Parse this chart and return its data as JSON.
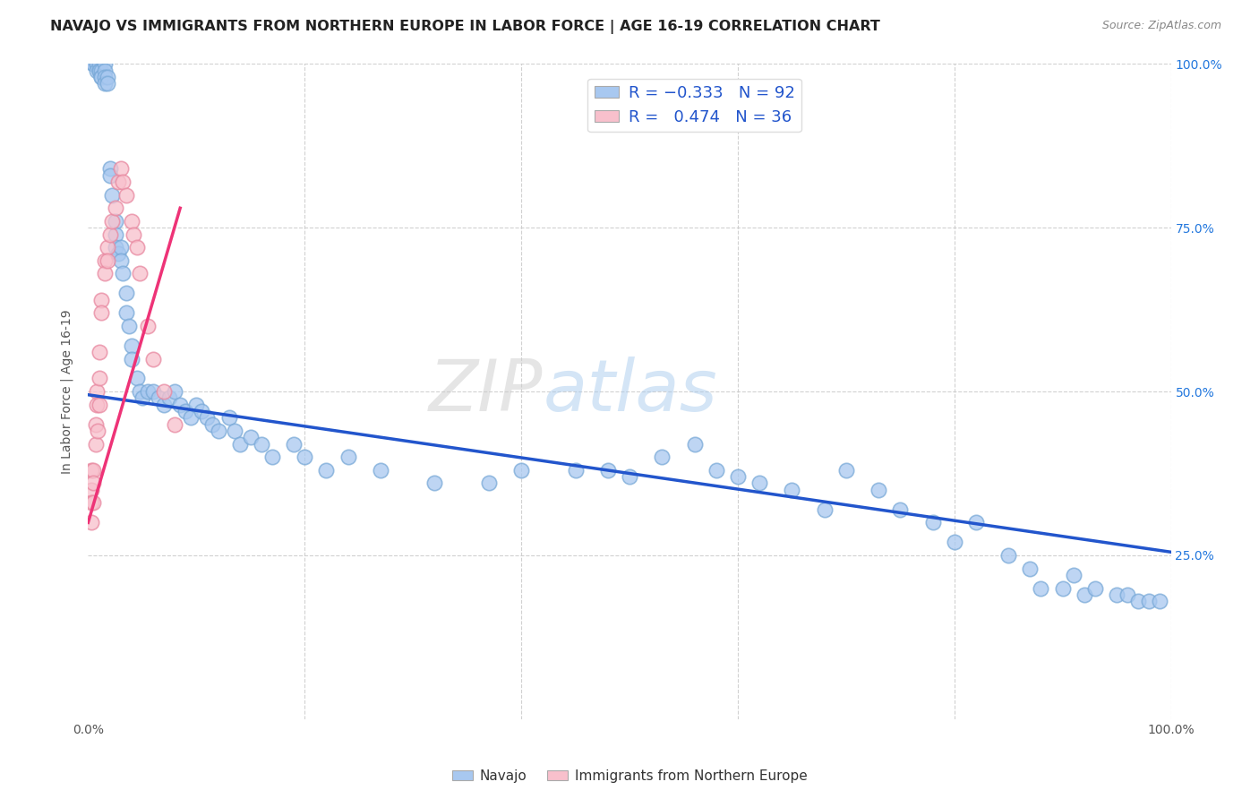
{
  "title": "NAVAJO VS IMMIGRANTS FROM NORTHERN EUROPE IN LABOR FORCE | AGE 16-19 CORRELATION CHART",
  "source": "Source: ZipAtlas.com",
  "ylabel": "In Labor Force | Age 16-19",
  "xlim": [
    0.0,
    1.0
  ],
  "ylim": [
    0.0,
    1.0
  ],
  "watermark_zip": "ZIP",
  "watermark_atlas": "atlas",
  "blue_color": "#A8C8F0",
  "blue_edge": "#7AAAD8",
  "pink_color": "#F8C0CC",
  "pink_edge": "#E888A0",
  "trend_blue": "#2255CC",
  "trend_pink": "#EE3377",
  "background": "#FFFFFF",
  "navajo_x": [
    0.005,
    0.005,
    0.005,
    0.008,
    0.008,
    0.008,
    0.01,
    0.01,
    0.01,
    0.012,
    0.012,
    0.012,
    0.015,
    0.015,
    0.015,
    0.015,
    0.018,
    0.018,
    0.02,
    0.02,
    0.022,
    0.025,
    0.025,
    0.025,
    0.028,
    0.03,
    0.03,
    0.032,
    0.035,
    0.035,
    0.038,
    0.04,
    0.04,
    0.045,
    0.048,
    0.05,
    0.055,
    0.06,
    0.065,
    0.07,
    0.075,
    0.08,
    0.085,
    0.09,
    0.095,
    0.1,
    0.105,
    0.11,
    0.115,
    0.12,
    0.13,
    0.135,
    0.14,
    0.15,
    0.16,
    0.17,
    0.19,
    0.2,
    0.22,
    0.24,
    0.27,
    0.32,
    0.37,
    0.4,
    0.45,
    0.48,
    0.5,
    0.53,
    0.56,
    0.58,
    0.6,
    0.62,
    0.65,
    0.68,
    0.7,
    0.73,
    0.75,
    0.78,
    0.8,
    0.82,
    0.85,
    0.87,
    0.88,
    0.9,
    0.91,
    0.92,
    0.93,
    0.95,
    0.96,
    0.97,
    0.98,
    0.99
  ],
  "navajo_y": [
    1.0,
    1.0,
    1.0,
    1.0,
    1.0,
    0.99,
    1.0,
    0.99,
    0.99,
    0.99,
    0.98,
    0.98,
    1.0,
    0.99,
    0.98,
    0.97,
    0.98,
    0.97,
    0.84,
    0.83,
    0.8,
    0.76,
    0.74,
    0.72,
    0.71,
    0.72,
    0.7,
    0.68,
    0.65,
    0.62,
    0.6,
    0.57,
    0.55,
    0.52,
    0.5,
    0.49,
    0.5,
    0.5,
    0.49,
    0.48,
    0.49,
    0.5,
    0.48,
    0.47,
    0.46,
    0.48,
    0.47,
    0.46,
    0.45,
    0.44,
    0.46,
    0.44,
    0.42,
    0.43,
    0.42,
    0.4,
    0.42,
    0.4,
    0.38,
    0.4,
    0.38,
    0.36,
    0.36,
    0.38,
    0.38,
    0.38,
    0.37,
    0.4,
    0.42,
    0.38,
    0.37,
    0.36,
    0.35,
    0.32,
    0.38,
    0.35,
    0.32,
    0.3,
    0.27,
    0.3,
    0.25,
    0.23,
    0.2,
    0.2,
    0.22,
    0.19,
    0.2,
    0.19,
    0.19,
    0.18,
    0.18,
    0.18
  ],
  "pink_x": [
    0.003,
    0.003,
    0.003,
    0.003,
    0.005,
    0.005,
    0.005,
    0.007,
    0.007,
    0.008,
    0.008,
    0.009,
    0.01,
    0.01,
    0.01,
    0.012,
    0.012,
    0.015,
    0.015,
    0.018,
    0.018,
    0.02,
    0.022,
    0.025,
    0.028,
    0.03,
    0.032,
    0.035,
    0.04,
    0.042,
    0.045,
    0.048,
    0.055,
    0.06,
    0.07,
    0.08
  ],
  "pink_y": [
    0.38,
    0.35,
    0.33,
    0.3,
    0.38,
    0.36,
    0.33,
    0.45,
    0.42,
    0.5,
    0.48,
    0.44,
    0.56,
    0.52,
    0.48,
    0.64,
    0.62,
    0.7,
    0.68,
    0.72,
    0.7,
    0.74,
    0.76,
    0.78,
    0.82,
    0.84,
    0.82,
    0.8,
    0.76,
    0.74,
    0.72,
    0.68,
    0.6,
    0.55,
    0.5,
    0.45
  ],
  "blue_trend_x": [
    0.0,
    1.0
  ],
  "blue_trend_y": [
    0.495,
    0.255
  ],
  "pink_trend_x": [
    0.0,
    0.085
  ],
  "pink_trend_y": [
    0.3,
    0.78
  ]
}
